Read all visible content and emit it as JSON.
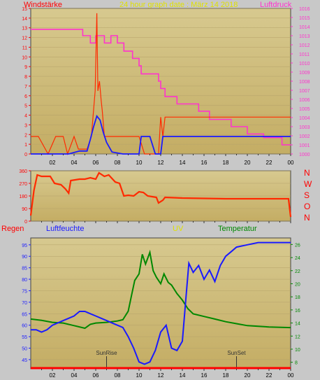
{
  "header": {
    "left_title": "Windstärke",
    "center_title": "24 hour graph date : März 14 2018",
    "right_title": "Luftdruck"
  },
  "middle": {
    "direction_labels": [
      "N",
      "W",
      "S",
      "O",
      "N"
    ]
  },
  "bottom_header": {
    "regen": "Regen",
    "luftfeuchte": "Luftfeuchte",
    "uv": "UV",
    "temperatur": "Temperatur"
  },
  "colors": {
    "wind": "#ff2a00",
    "wind_avg": "#1a1aff",
    "pressure": "#ff33cc",
    "direction": "#ff2a00",
    "humidity": "#1a1aff",
    "temperature": "#008800",
    "rain": "#ff0000",
    "uv": "#ffff00"
  },
  "chart_data": [
    {
      "type": "line",
      "name": "wind_pressure",
      "x_ticks": [
        "02",
        "04",
        "06",
        "08",
        "10",
        "12",
        "14",
        "16",
        "18",
        "20",
        "22",
        "00"
      ],
      "y_left_ticks": [
        0,
        1,
        2,
        3,
        4,
        5,
        6,
        7,
        8,
        9,
        10,
        11,
        12,
        13,
        14,
        15
      ],
      "y_right_ticks": [
        1000,
        1001,
        1002,
        1003,
        1004,
        1005,
        1006,
        1007,
        1008,
        1009,
        1010,
        1011,
        1012,
        1013,
        1014,
        1015,
        1016
      ],
      "ylim_left": [
        0,
        15
      ],
      "ylim_right": [
        1000,
        1016
      ],
      "series": [
        {
          "key": "wind_gust",
          "points": [
            [
              0,
              1.8
            ],
            [
              0.7,
              1.8
            ],
            [
              1.6,
              0
            ],
            [
              2.3,
              1.8
            ],
            [
              3.0,
              1.8
            ],
            [
              3.4,
              0
            ],
            [
              4.0,
              1.8
            ],
            [
              4.4,
              0.5
            ],
            [
              5.2,
              0.5
            ],
            [
              5.6,
              1.8
            ],
            [
              5.8,
              4.5
            ],
            [
              5.95,
              6.5
            ],
            [
              6.1,
              14.5
            ],
            [
              6.2,
              6.5
            ],
            [
              6.35,
              7.5
            ],
            [
              6.5,
              5.5
            ],
            [
              6.6,
              4.5
            ],
            [
              6.8,
              1.8
            ],
            [
              7.5,
              1.8
            ],
            [
              8.0,
              1.8
            ],
            [
              8.5,
              1.8
            ],
            [
              9.0,
              1.8
            ],
            [
              9.5,
              1.8
            ],
            [
              10.0,
              1.8
            ],
            [
              10.5,
              0
            ],
            [
              11.0,
              0
            ],
            [
              11.5,
              0
            ],
            [
              11.8,
              0
            ],
            [
              12.0,
              3.8
            ],
            [
              12.2,
              1.8
            ],
            [
              12.4,
              3.8
            ],
            [
              13,
              3.8
            ],
            [
              15,
              3.8
            ],
            [
              18,
              3.8
            ],
            [
              20,
              3.8
            ],
            [
              22,
              3.8
            ],
            [
              24,
              3.8
            ]
          ]
        },
        {
          "key": "wind_avg",
          "points": [
            [
              0,
              0
            ],
            [
              3.5,
              0
            ],
            [
              4.5,
              0.3
            ],
            [
              5.2,
              0.3
            ],
            [
              5.5,
              1.5
            ],
            [
              5.8,
              2.8
            ],
            [
              6.1,
              3.9
            ],
            [
              6.4,
              3.5
            ],
            [
              6.7,
              2.2
            ],
            [
              7.0,
              1.2
            ],
            [
              7.5,
              0.2
            ],
            [
              8.5,
              0
            ],
            [
              10.0,
              0
            ],
            [
              10.2,
              1.8
            ],
            [
              11.0,
              1.8
            ],
            [
              11.5,
              0
            ],
            [
              12.0,
              0
            ],
            [
              12.2,
              1.8
            ],
            [
              14,
              1.8
            ],
            [
              18,
              1.8
            ],
            [
              22,
              1.8
            ],
            [
              24,
              1.8
            ]
          ]
        },
        {
          "key": "pressure",
          "axis": "right",
          "points": [
            [
              0,
              1013.7
            ],
            [
              4.8,
              1013.7
            ],
            [
              4.8,
              1013.0
            ],
            [
              5.5,
              1013.0
            ],
            [
              5.5,
              1012.2
            ],
            [
              6.0,
              1012.2
            ],
            [
              6.0,
              1013.0
            ],
            [
              6.8,
              1013.0
            ],
            [
              6.8,
              1012.2
            ],
            [
              7.4,
              1012.2
            ],
            [
              7.4,
              1013.0
            ],
            [
              8.0,
              1013.0
            ],
            [
              8.0,
              1012.2
            ],
            [
              8.6,
              1012.2
            ],
            [
              8.6,
              1011.3
            ],
            [
              9.4,
              1011.3
            ],
            [
              9.4,
              1010.5
            ],
            [
              10.0,
              1010.5
            ],
            [
              10.0,
              1009.7
            ],
            [
              10.2,
              1009.7
            ],
            [
              10.2,
              1008.8
            ],
            [
              11.8,
              1008.8
            ],
            [
              11.8,
              1008.0
            ],
            [
              12.0,
              1008.0
            ],
            [
              12.0,
              1007.2
            ],
            [
              12.4,
              1007.2
            ],
            [
              12.4,
              1006.3
            ],
            [
              13.5,
              1006.3
            ],
            [
              13.5,
              1005.5
            ],
            [
              15.5,
              1005.5
            ],
            [
              15.5,
              1004.7
            ],
            [
              16.5,
              1004.7
            ],
            [
              16.5,
              1003.8
            ],
            [
              18.5,
              1003.8
            ],
            [
              18.5,
              1003.0
            ],
            [
              20.0,
              1003.0
            ],
            [
              20.0,
              1002.2
            ],
            [
              21.5,
              1002.2
            ],
            [
              21.5,
              1001.8
            ],
            [
              23.2,
              1001.8
            ],
            [
              23.2,
              1001.0
            ],
            [
              24,
              1001.0
            ]
          ]
        }
      ]
    },
    {
      "type": "line",
      "name": "wind_direction",
      "y_ticks": [
        0,
        90,
        180,
        270,
        360
      ],
      "ylim": [
        0,
        360
      ],
      "series": [
        {
          "key": "direction",
          "points": [
            [
              0,
              40
            ],
            [
              0.3,
              220
            ],
            [
              0.6,
              330
            ],
            [
              1.0,
              320
            ],
            [
              1.8,
              320
            ],
            [
              2.2,
              270
            ],
            [
              2.8,
              260
            ],
            [
              3.2,
              230
            ],
            [
              3.5,
              200
            ],
            [
              3.7,
              290
            ],
            [
              4.5,
              300
            ],
            [
              5.0,
              300
            ],
            [
              5.5,
              310
            ],
            [
              6.0,
              300
            ],
            [
              6.3,
              345
            ],
            [
              6.8,
              320
            ],
            [
              7.2,
              330
            ],
            [
              7.8,
              280
            ],
            [
              8.2,
              270
            ],
            [
              8.6,
              180
            ],
            [
              9.0,
              185
            ],
            [
              9.5,
              180
            ],
            [
              10.0,
              210
            ],
            [
              10.4,
              205
            ],
            [
              10.8,
              180
            ],
            [
              11.2,
              175
            ],
            [
              11.6,
              170
            ],
            [
              11.8,
              130
            ],
            [
              12.2,
              150
            ],
            [
              12.4,
              170
            ],
            [
              14,
              165
            ],
            [
              18,
              160
            ],
            [
              22,
              160
            ],
            [
              23.8,
              160
            ],
            [
              24,
              30
            ]
          ]
        }
      ]
    },
    {
      "type": "line",
      "name": "humidity_temperature",
      "y_left_ticks": [
        45,
        50,
        55,
        60,
        65,
        70,
        75,
        80,
        85,
        90,
        95
      ],
      "y_right_ticks": [
        8,
        10,
        12,
        14,
        16,
        18,
        20,
        22,
        24,
        26
      ],
      "ylim_left": [
        41,
        98
      ],
      "ylim_right": [
        7,
        27
      ],
      "annotations": [
        {
          "text": "SunRise",
          "x": 7.0
        },
        {
          "text": "SunSet",
          "x": 19.0
        }
      ],
      "series": [
        {
          "key": "humidity",
          "points": [
            [
              0,
              58
            ],
            [
              0.5,
              58
            ],
            [
              1.0,
              57
            ],
            [
              1.5,
              58
            ],
            [
              2.0,
              60
            ],
            [
              3.0,
              62
            ],
            [
              3.5,
              63
            ],
            [
              4.0,
              64
            ],
            [
              4.5,
              66
            ],
            [
              5.0,
              66
            ],
            [
              5.5,
              65
            ],
            [
              6.0,
              64
            ],
            [
              6.5,
              63
            ],
            [
              7.0,
              62
            ],
            [
              7.5,
              61
            ],
            [
              8.0,
              60
            ],
            [
              8.5,
              59
            ],
            [
              9.0,
              55
            ],
            [
              9.5,
              50
            ],
            [
              10.0,
              44
            ],
            [
              10.5,
              43
            ],
            [
              11.0,
              44
            ],
            [
              11.5,
              49
            ],
            [
              12.0,
              57
            ],
            [
              12.5,
              60
            ],
            [
              13.0,
              50
            ],
            [
              13.5,
              49
            ],
            [
              14.0,
              53
            ],
            [
              14.3,
              70
            ],
            [
              14.6,
              87
            ],
            [
              15.0,
              83
            ],
            [
              15.5,
              86
            ],
            [
              16.0,
              80
            ],
            [
              16.5,
              84
            ],
            [
              17.0,
              79
            ],
            [
              17.5,
              86
            ],
            [
              18.0,
              90
            ],
            [
              18.5,
              92
            ],
            [
              19.0,
              94
            ],
            [
              20.0,
              95
            ],
            [
              21.0,
              96
            ],
            [
              22.0,
              96
            ],
            [
              23.0,
              96
            ],
            [
              24,
              96
            ]
          ]
        },
        {
          "key": "temperature",
          "axis": "right",
          "points": [
            [
              0,
              14.6
            ],
            [
              1,
              14.4
            ],
            [
              2,
              14.1
            ],
            [
              3,
              14.0
            ],
            [
              4,
              13.6
            ],
            [
              5,
              13.2
            ],
            [
              5.5,
              13.8
            ],
            [
              6,
              14.0
            ],
            [
              7,
              14.1
            ],
            [
              8,
              14.3
            ],
            [
              8.5,
              14.5
            ],
            [
              9.0,
              15.8
            ],
            [
              9.3,
              18.2
            ],
            [
              9.6,
              20.5
            ],
            [
              10.0,
              21.5
            ],
            [
              10.3,
              24.5
            ],
            [
              10.6,
              23.0
            ],
            [
              11.0,
              24.8
            ],
            [
              11.3,
              22.0
            ],
            [
              11.6,
              21.0
            ],
            [
              12.0,
              20.0
            ],
            [
              12.3,
              21.5
            ],
            [
              12.7,
              20.2
            ],
            [
              13.0,
              19.8
            ],
            [
              13.5,
              18.5
            ],
            [
              14.0,
              17.5
            ],
            [
              14.5,
              16.2
            ],
            [
              15.0,
              15.4
            ],
            [
              16.0,
              15.0
            ],
            [
              17.0,
              14.6
            ],
            [
              18.0,
              14.2
            ],
            [
              19.0,
              13.9
            ],
            [
              20.0,
              13.6
            ],
            [
              21.0,
              13.5
            ],
            [
              22.0,
              13.4
            ],
            [
              24,
              13.3
            ]
          ]
        },
        {
          "key": "rain",
          "points": [
            [
              0,
              41
            ],
            [
              24,
              41
            ]
          ]
        }
      ]
    }
  ]
}
